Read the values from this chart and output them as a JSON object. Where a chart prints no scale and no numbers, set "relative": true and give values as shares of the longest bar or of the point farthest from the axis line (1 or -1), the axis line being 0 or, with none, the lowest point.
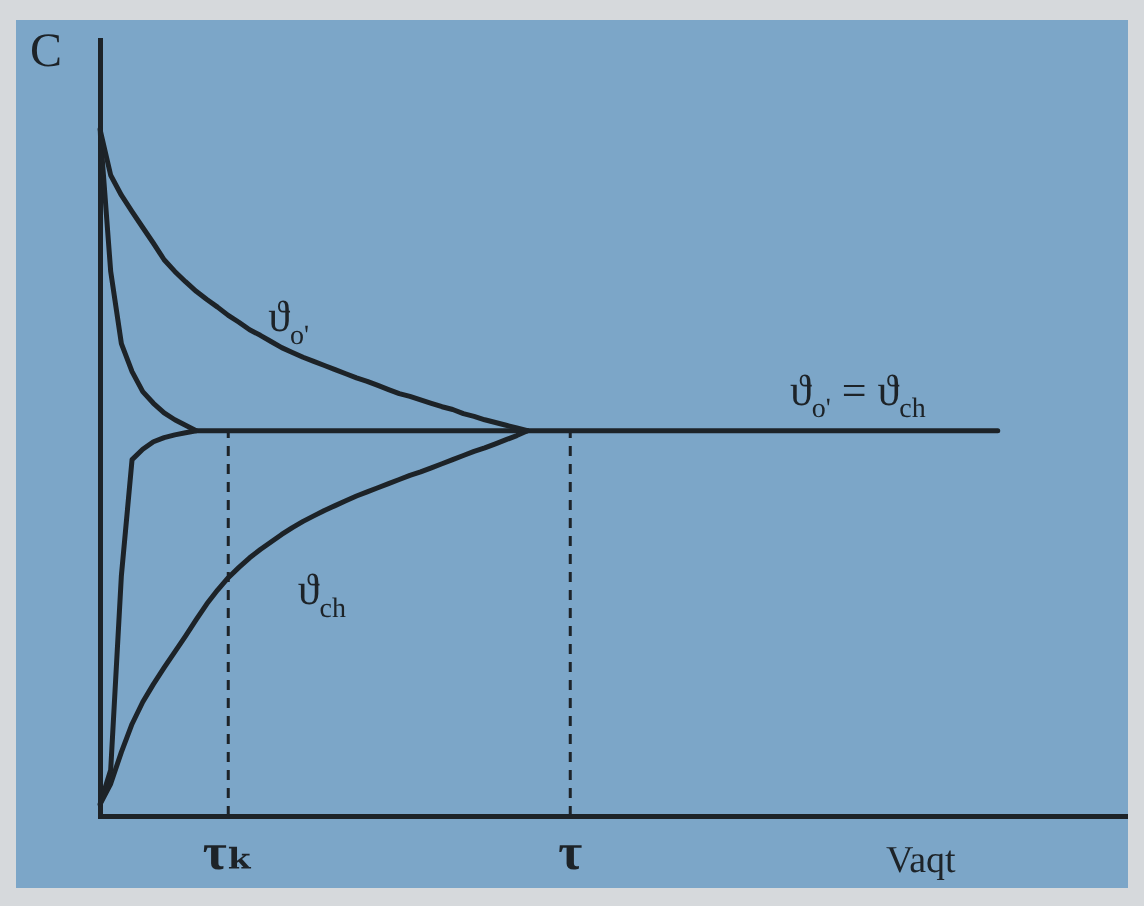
{
  "chart_data": {
    "type": "line",
    "xlabel": "Vaqt",
    "ylabel": "C",
    "relative": true,
    "tick_labels": "x",
    "categories": [
      null,
      null,
      null,
      null,
      null,
      null,
      null,
      null,
      null,
      null,
      null,
      null,
      "τₖ",
      null,
      null,
      null,
      null,
      null,
      null,
      null,
      null,
      null,
      null,
      null,
      null,
      null,
      null,
      null,
      null,
      null,
      null,
      null,
      null,
      null,
      null,
      null,
      null,
      null,
      null,
      null,
      null,
      null,
      null,
      null,
      "τ",
      null,
      null,
      null,
      null,
      null,
      null,
      null,
      null,
      null,
      null,
      null,
      null,
      null,
      null,
      null,
      null,
      null,
      null,
      null,
      null,
      null,
      null,
      null,
      null,
      null,
      null,
      null,
      null,
      null,
      null,
      null,
      null,
      null,
      null,
      null,
      null,
      null,
      null,
      null,
      null,
      null,
      null,
      null,
      null,
      null,
      null,
      null,
      null,
      null,
      null,
      null,
      null
    ],
    "series": [
      {
        "name": "ϑ$_{o'}$",
        "color": "#1d2328",
        "values": [
          1,
          0.933,
          0.904,
          0.88,
          0.857,
          0.834,
          0.81,
          0.793,
          0.778,
          0.764,
          0.752,
          0.741,
          0.729,
          0.719,
          0.708,
          0.7,
          0.691,
          0.682,
          0.675,
          0.668,
          0.662,
          0.656,
          0.65,
          0.644,
          0.638,
          0.633,
          0.627,
          0.621,
          0.615,
          0.611,
          0.606,
          0.601,
          0.596,
          0.592,
          0.586,
          0.582,
          0.577,
          0.573,
          0.569,
          0.565,
          0.561,
          null,
          null,
          null,
          null,
          null,
          null,
          null,
          null,
          null,
          null,
          null,
          null,
          null,
          null,
          null,
          null,
          null,
          null,
          null,
          null,
          null,
          null,
          null,
          null,
          null,
          null,
          null,
          null,
          null,
          null,
          null,
          null,
          null,
          null,
          null,
          null,
          null,
          null,
          null,
          null,
          null,
          null,
          null,
          null,
          null,
          null,
          null,
          null,
          null,
          null,
          null,
          null,
          null,
          null,
          null,
          null
        ]
      },
      {
        "name": "ϑ$_{ch}$",
        "color": "#1d2328",
        "values": [
          0.017,
          0.047,
          0.093,
          0.134,
          0.166,
          0.192,
          0.216,
          0.239,
          0.262,
          0.286,
          0.309,
          0.329,
          0.347,
          0.362,
          0.376,
          0.388,
          0.399,
          0.41,
          0.42,
          0.429,
          0.437,
          0.445,
          0.452,
          0.459,
          0.466,
          0.472,
          0.478,
          0.484,
          0.49,
          0.496,
          0.501,
          0.507,
          0.513,
          0.519,
          0.525,
          0.531,
          0.536,
          0.542,
          0.548,
          0.554,
          0.561,
          null,
          null,
          null,
          null,
          null,
          null,
          null,
          null,
          null,
          null,
          null,
          null,
          null,
          null,
          null,
          null,
          null,
          null,
          null,
          null,
          null,
          null,
          null,
          null,
          null,
          null,
          null,
          null,
          null,
          null,
          null,
          null,
          null,
          null,
          null,
          null,
          null,
          null,
          null,
          null,
          null,
          null,
          null,
          null,
          null,
          null,
          null,
          null,
          null,
          null,
          null,
          null,
          null,
          null,
          null,
          null
        ]
      },
      {
        "color": "#1d2328",
        "values": [
          1,
          0.793,
          0.688,
          0.647,
          0.618,
          0.601,
          0.587,
          0.577,
          0.569,
          0.561,
          null,
          null,
          null,
          null,
          null,
          null,
          null,
          null,
          null,
          null,
          null,
          null,
          null,
          null,
          null,
          null,
          null,
          null,
          null,
          null,
          null,
          null,
          null,
          null,
          null,
          null,
          null,
          null,
          null,
          null,
          null,
          null,
          null,
          null,
          null,
          null,
          null,
          null,
          null,
          null,
          null,
          null,
          null,
          null,
          null,
          null,
          null,
          null,
          null,
          null,
          null,
          null,
          null,
          null,
          null,
          null,
          null,
          null,
          null,
          null,
          null,
          null,
          null,
          null,
          null,
          null,
          null,
          null,
          null,
          null,
          null,
          null,
          null,
          null,
          null,
          null,
          null,
          null,
          null,
          null,
          null,
          null,
          null,
          null,
          null,
          null,
          null
        ]
      },
      {
        "name": "ϑ$_{o'}$ = ϑ$_{ch}$",
        "color": "#1d2328",
        "values": [
          0.017,
          0.067,
          0.35,
          0.519,
          0.534,
          0.545,
          0.551,
          0.555,
          0.558,
          0.561,
          0.561,
          0.561,
          0.561,
          0.561,
          0.561,
          0.561,
          0.561,
          0.561,
          0.561,
          0.561,
          0.561,
          0.561,
          0.561,
          0.561,
          0.561,
          0.561,
          0.561,
          0.561,
          0.561,
          0.561,
          0.561,
          0.561,
          0.561,
          0.561,
          0.561,
          0.561,
          0.561,
          0.561,
          0.561,
          0.561,
          0.561,
          0.561,
          0.561,
          0.561,
          0.561,
          0.561,
          0.561,
          0.561,
          0.561,
          0.561,
          0.561,
          0.561,
          0.561,
          0.561,
          0.561,
          0.561,
          0.561,
          0.561,
          0.561,
          0.561,
          0.561,
          0.561,
          0.561,
          0.561,
          0.561,
          0.561,
          0.561,
          0.561,
          0.561,
          0.561,
          0.561,
          0.561,
          0.561,
          0.561,
          0.561,
          0.561,
          0.561,
          0.561,
          0.561,
          0.561,
          0.561,
          0.561,
          0.561,
          0.561,
          0.561,
          null,
          null,
          null,
          null,
          null,
          null,
          null,
          null,
          null,
          null,
          null,
          null
        ]
      }
    ],
    "ref_lines": [
      {
        "axis": "x",
        "value": "τₖ",
        "color": "#1d2328",
        "line_style": "dashed"
      },
      {
        "axis": "x",
        "value": "τ",
        "color": "#1d2328",
        "line_style": "dashed"
      }
    ]
  }
}
